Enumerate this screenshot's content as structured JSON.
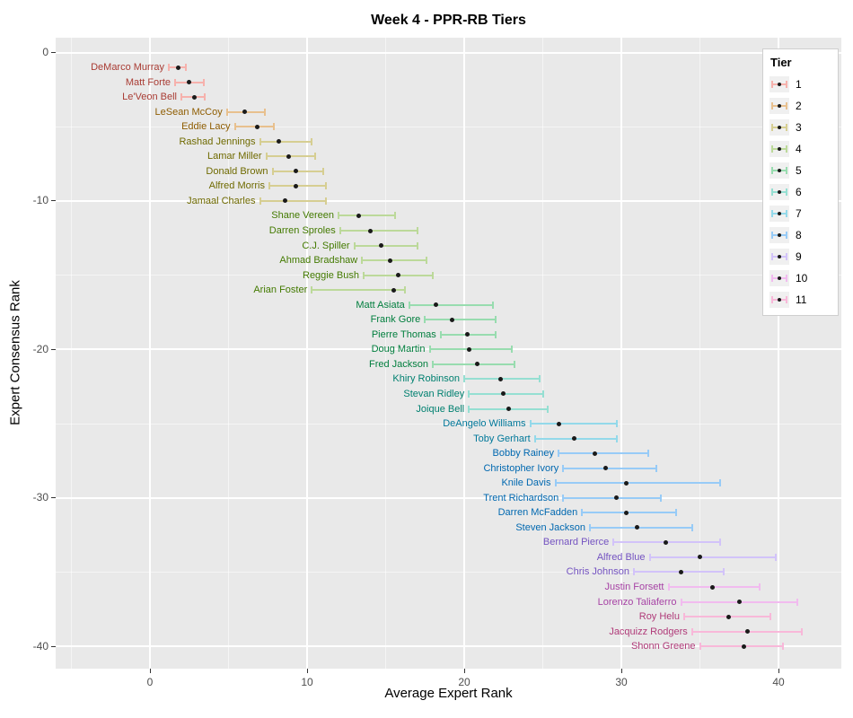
{
  "title": "Week 4 - PPR-RB Tiers",
  "axes": {
    "x": {
      "label": "Average Expert Rank",
      "range": [
        -6,
        44
      ],
      "major_ticks": [
        0,
        10,
        20,
        30,
        40
      ],
      "minor_ticks": [
        -5,
        5,
        15,
        25,
        35
      ]
    },
    "y": {
      "label": "Expert Consensus Rank",
      "range": [
        1,
        -41.5
      ],
      "major_ticks": [
        0,
        -10,
        -20,
        -30,
        -40
      ],
      "minor_ticks": [
        -5,
        -15,
        -25,
        -35
      ]
    }
  },
  "legend": {
    "title": "Tier"
  },
  "tiers": [
    {
      "tier": "1",
      "bar_color": "#F6B1AC",
      "label_color": "#A93C34"
    },
    {
      "tier": "2",
      "bar_color": "#E8C08E",
      "label_color": "#8E5C00"
    },
    {
      "tier": "3",
      "bar_color": "#D6CE92",
      "label_color": "#6F6A00"
    },
    {
      "tier": "4",
      "bar_color": "#BCD99A",
      "label_color": "#437A00"
    },
    {
      "tier": "5",
      "bar_color": "#98DCAF",
      "label_color": "#007E3D"
    },
    {
      "tier": "6",
      "bar_color": "#95DFD2",
      "label_color": "#008070"
    },
    {
      "tier": "7",
      "bar_color": "#93D9EA",
      "label_color": "#00789A"
    },
    {
      "tier": "8",
      "bar_color": "#97CBF7",
      "label_color": "#0068B0"
    },
    {
      "tier": "9",
      "bar_color": "#D2C3F9",
      "label_color": "#7453C1"
    },
    {
      "tier": "10",
      "bar_color": "#F1BBEF",
      "label_color": "#A743A5"
    },
    {
      "tier": "11",
      "bar_color": "#F8B8D9",
      "label_color": "#B03B79"
    }
  ],
  "chart_data": {
    "type": "scatter",
    "title": "Week 4 - PPR-RB Tiers",
    "xlabel": "Average Expert Rank",
    "ylabel": "Expert Consensus Rank",
    "xlim": [
      -6,
      44
    ],
    "ylim": [
      1,
      -41.5
    ],
    "grid": true,
    "legend_position": "top-right-inside",
    "note": "Each point: y = -rank (expert consensus rank), x = avg expert rank, horizontal error bar from lo to hi, colored by tier",
    "points": [
      {
        "rank": 1,
        "player": "DeMarco Murray",
        "tier": "1",
        "avg": 1.8,
        "lo": 1.2,
        "hi": 2.3
      },
      {
        "rank": 2,
        "player": "Matt Forte",
        "tier": "1",
        "avg": 2.5,
        "lo": 1.6,
        "hi": 3.4
      },
      {
        "rank": 3,
        "player": "Le'Veon Bell",
        "tier": "1",
        "avg": 2.8,
        "lo": 2.0,
        "hi": 3.5
      },
      {
        "rank": 4,
        "player": "LeSean McCoy",
        "tier": "2",
        "avg": 6.0,
        "lo": 4.9,
        "hi": 7.3
      },
      {
        "rank": 5,
        "player": "Eddie Lacy",
        "tier": "2",
        "avg": 6.8,
        "lo": 5.4,
        "hi": 7.9
      },
      {
        "rank": 6,
        "player": "Rashad Jennings",
        "tier": "3",
        "avg": 8.2,
        "lo": 7.0,
        "hi": 10.3
      },
      {
        "rank": 7,
        "player": "Lamar Miller",
        "tier": "3",
        "avg": 8.8,
        "lo": 7.4,
        "hi": 10.5
      },
      {
        "rank": 8,
        "player": "Donald Brown",
        "tier": "3",
        "avg": 9.3,
        "lo": 7.8,
        "hi": 11.0
      },
      {
        "rank": 9,
        "player": "Alfred Morris",
        "tier": "3",
        "avg": 9.3,
        "lo": 7.6,
        "hi": 11.2
      },
      {
        "rank": 10,
        "player": "Jamaal Charles",
        "tier": "3",
        "avg": 8.6,
        "lo": 7.0,
        "hi": 11.2
      },
      {
        "rank": 11,
        "player": "Shane Vereen",
        "tier": "4",
        "avg": 13.3,
        "lo": 12.0,
        "hi": 15.6
      },
      {
        "rank": 12,
        "player": "Darren Sproles",
        "tier": "4",
        "avg": 14.0,
        "lo": 12.1,
        "hi": 17.0
      },
      {
        "rank": 13,
        "player": "C.J. Spiller",
        "tier": "4",
        "avg": 14.7,
        "lo": 13.0,
        "hi": 17.0
      },
      {
        "rank": 14,
        "player": "Ahmad Bradshaw",
        "tier": "4",
        "avg": 15.3,
        "lo": 13.5,
        "hi": 17.6
      },
      {
        "rank": 15,
        "player": "Reggie Bush",
        "tier": "4",
        "avg": 15.8,
        "lo": 13.6,
        "hi": 18.0
      },
      {
        "rank": 16,
        "player": "Arian Foster",
        "tier": "4",
        "avg": 15.5,
        "lo": 10.3,
        "hi": 16.2
      },
      {
        "rank": 17,
        "player": "Matt Asiata",
        "tier": "5",
        "avg": 18.2,
        "lo": 16.5,
        "hi": 21.8
      },
      {
        "rank": 18,
        "player": "Frank Gore",
        "tier": "5",
        "avg": 19.2,
        "lo": 17.5,
        "hi": 22.0
      },
      {
        "rank": 19,
        "player": "Pierre Thomas",
        "tier": "5",
        "avg": 20.2,
        "lo": 18.5,
        "hi": 22.0
      },
      {
        "rank": 20,
        "player": "Doug Martin",
        "tier": "5",
        "avg": 20.3,
        "lo": 17.8,
        "hi": 23.0
      },
      {
        "rank": 21,
        "player": "Fred Jackson",
        "tier": "5",
        "avg": 20.8,
        "lo": 18.0,
        "hi": 23.2
      },
      {
        "rank": 22,
        "player": "Khiry Robinson",
        "tier": "6",
        "avg": 22.3,
        "lo": 20.0,
        "hi": 24.8
      },
      {
        "rank": 23,
        "player": "Stevan Ridley",
        "tier": "6",
        "avg": 22.5,
        "lo": 20.3,
        "hi": 25.0
      },
      {
        "rank": 24,
        "player": "Joique Bell",
        "tier": "6",
        "avg": 22.8,
        "lo": 20.3,
        "hi": 25.3
      },
      {
        "rank": 25,
        "player": "DeAngelo Williams",
        "tier": "7",
        "avg": 26.0,
        "lo": 24.2,
        "hi": 29.7
      },
      {
        "rank": 26,
        "player": "Toby Gerhart",
        "tier": "7",
        "avg": 27.0,
        "lo": 24.5,
        "hi": 29.7
      },
      {
        "rank": 27,
        "player": "Bobby Rainey",
        "tier": "8",
        "avg": 28.3,
        "lo": 26.0,
        "hi": 31.7
      },
      {
        "rank": 28,
        "player": "Christopher Ivory",
        "tier": "8",
        "avg": 29.0,
        "lo": 26.3,
        "hi": 32.2
      },
      {
        "rank": 29,
        "player": "Knile Davis",
        "tier": "8",
        "avg": 30.3,
        "lo": 25.8,
        "hi": 36.3
      },
      {
        "rank": 30,
        "player": "Trent Richardson",
        "tier": "8",
        "avg": 29.7,
        "lo": 26.3,
        "hi": 32.5
      },
      {
        "rank": 31,
        "player": "Darren McFadden",
        "tier": "8",
        "avg": 30.3,
        "lo": 27.5,
        "hi": 33.5
      },
      {
        "rank": 32,
        "player": "Steven Jackson",
        "tier": "8",
        "avg": 31.0,
        "lo": 28.0,
        "hi": 34.5
      },
      {
        "rank": 33,
        "player": "Bernard Pierce",
        "tier": "9",
        "avg": 32.8,
        "lo": 29.5,
        "hi": 36.3
      },
      {
        "rank": 34,
        "player": "Alfred Blue",
        "tier": "9",
        "avg": 35.0,
        "lo": 31.8,
        "hi": 39.8
      },
      {
        "rank": 35,
        "player": "Chris Johnson",
        "tier": "9",
        "avg": 33.8,
        "lo": 30.8,
        "hi": 36.5
      },
      {
        "rank": 36,
        "player": "Justin Forsett",
        "tier": "10",
        "avg": 35.8,
        "lo": 33.0,
        "hi": 38.8
      },
      {
        "rank": 37,
        "player": "Lorenzo Taliaferro",
        "tier": "10",
        "avg": 37.5,
        "lo": 33.8,
        "hi": 41.2
      },
      {
        "rank": 38,
        "player": "Roy Helu",
        "tier": "11",
        "avg": 36.8,
        "lo": 34.0,
        "hi": 39.5
      },
      {
        "rank": 39,
        "player": "Jacquizz Rodgers",
        "tier": "11",
        "avg": 38.0,
        "lo": 34.5,
        "hi": 41.5
      },
      {
        "rank": 40,
        "player": "Shonn Greene",
        "tier": "11",
        "avg": 37.8,
        "lo": 35.0,
        "hi": 40.3
      }
    ]
  }
}
